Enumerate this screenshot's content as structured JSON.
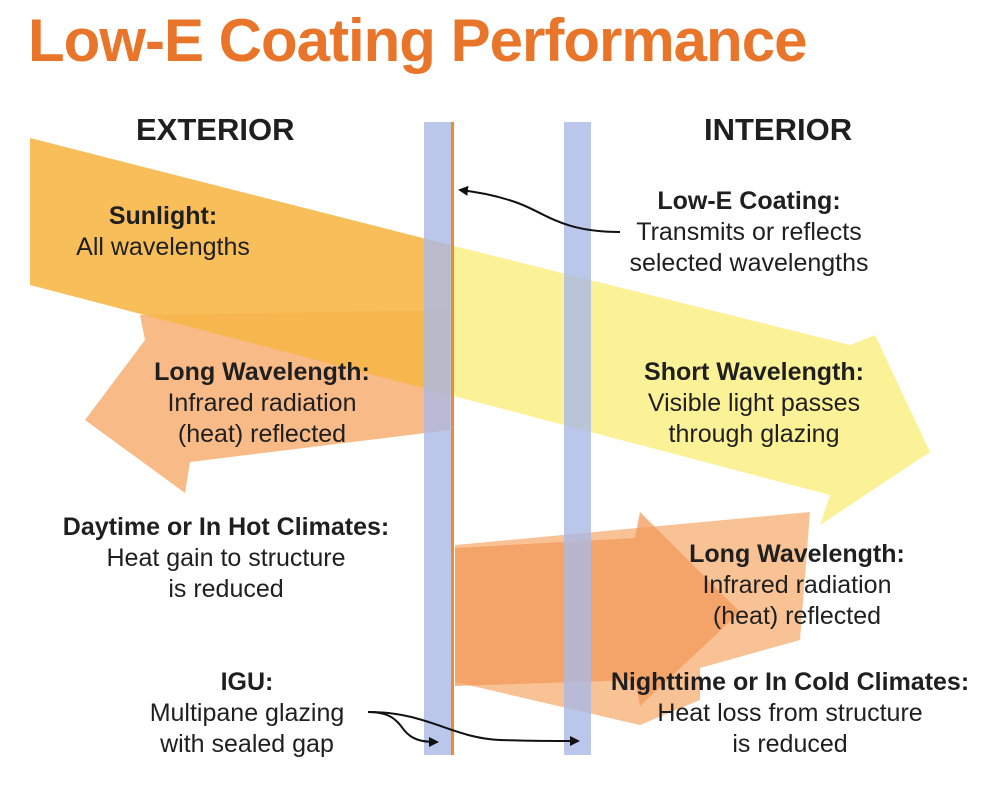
{
  "title": "Low-E Coating Performance",
  "sides": {
    "exterior": "EXTERIOR",
    "interior": "INTERIOR"
  },
  "callouts": {
    "sunlight": {
      "heading": "Sunlight:",
      "lines": [
        "All wavelengths"
      ]
    },
    "low_e_coating": {
      "heading": "Low-E Coating:",
      "lines": [
        "Transmits or reflects",
        "selected wavelengths"
      ]
    },
    "long_wavelength_exterior": {
      "heading": "Long Wavelength:",
      "lines": [
        "Infrared radiation",
        "(heat) reflected"
      ]
    },
    "short_wavelength": {
      "heading": "Short Wavelength:",
      "lines": [
        "Visible light passes",
        "through glazing"
      ]
    },
    "daytime": {
      "heading": "Daytime or In Hot Climates:",
      "lines": [
        "Heat gain to structure",
        "is reduced"
      ]
    },
    "long_wavelength_interior": {
      "heading": "Long Wavelength:",
      "lines": [
        "Infrared radiation",
        "(heat) reflected"
      ]
    },
    "igu": {
      "heading": "IGU:",
      "lines": [
        "Multipane glazing",
        "with sealed gap"
      ]
    },
    "nighttime": {
      "heading": "Nighttime or In Cold Climates:",
      "lines": [
        "Heat loss from structure",
        "is reduced"
      ]
    }
  },
  "colors": {
    "title": "#e8752a",
    "glass_pane": "#a9b9e6",
    "coating": "#f08a2a",
    "sunlight_arrow": "#f7b748",
    "short_wave_arrow": "#fbf18c",
    "infrared_arrow": "#f7ae72",
    "infrared_arrow_light": "#fbd7b3"
  }
}
